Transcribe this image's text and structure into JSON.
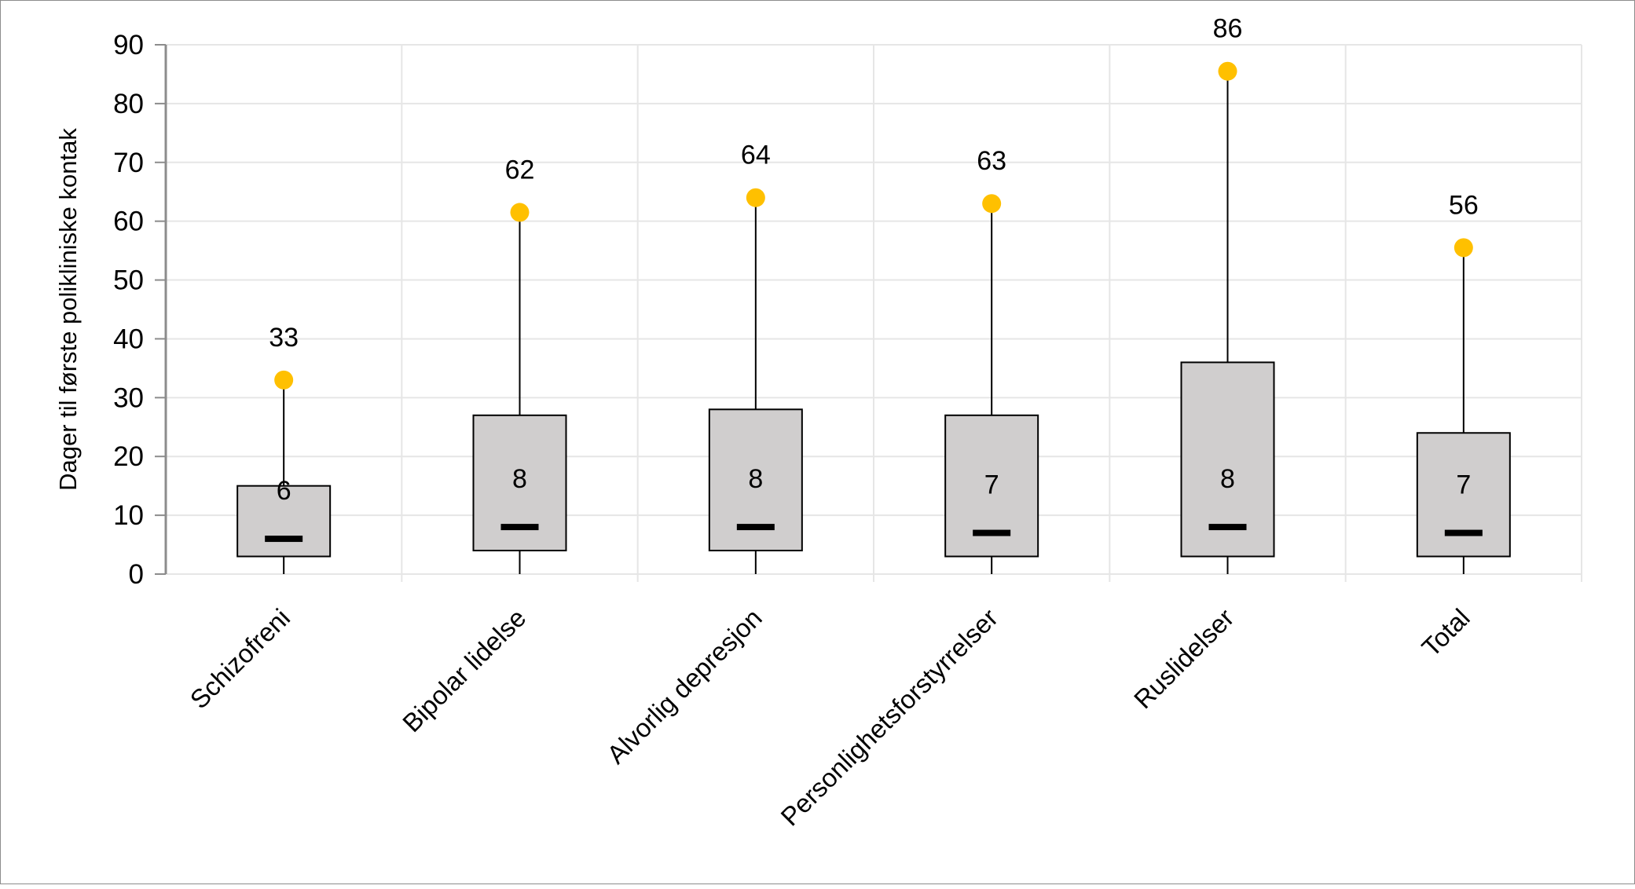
{
  "chart_data": {
    "type": "boxplot",
    "title": "",
    "xlabel": "",
    "ylabel": "Dager til første polikliniske kontak",
    "ylim": [
      0,
      90
    ],
    "yticks": [
      0,
      10,
      20,
      30,
      40,
      50,
      60,
      70,
      80,
      90
    ],
    "grid": true,
    "categories": [
      "Schizofreni",
      "Bipolar lidelse",
      "Alvorlig depresjon",
      "Personlighetsforstyrrelser",
      "Ruslidelser",
      "Total"
    ],
    "whisker_low": [
      0,
      0,
      0,
      0,
      0,
      0
    ],
    "q1": [
      3,
      4,
      4,
      3,
      3,
      3
    ],
    "median": [
      6,
      8,
      8,
      7,
      8,
      7
    ],
    "q3": [
      15,
      27,
      28,
      27,
      36,
      24
    ],
    "max": [
      33,
      61.5,
      64,
      63,
      85.5,
      55.5
    ],
    "median_labels": [
      "6",
      "8",
      "8",
      "7",
      "8",
      "7"
    ],
    "max_labels": [
      "33",
      "62",
      "64",
      "63",
      "86",
      "56"
    ],
    "colors": {
      "box": "#d0cece",
      "max_marker": "#ffc000",
      "median": "#000000",
      "grid": "#e6e6e6",
      "axis": "#8c8c8c"
    }
  }
}
